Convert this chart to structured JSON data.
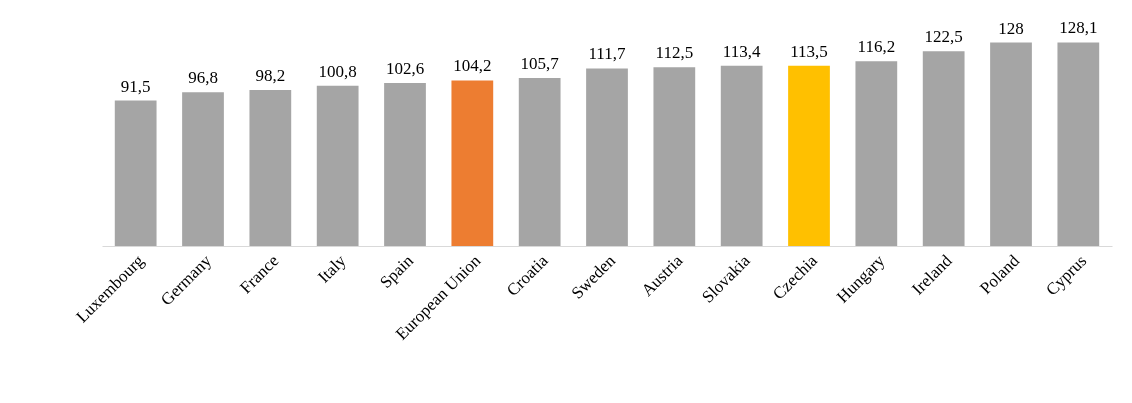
{
  "chart_data": {
    "type": "bar",
    "categories": [
      "Luxembourg",
      "Germany",
      "France",
      "Italy",
      "Spain",
      "European Union",
      "Croatia",
      "Sweden",
      "Austria",
      "Slovakia",
      "Czechia",
      "Hungary",
      "Ireland",
      "Poland",
      "Cyprus"
    ],
    "values": [
      91.5,
      96.8,
      98.2,
      100.8,
      102.6,
      104.2,
      105.7,
      111.7,
      112.5,
      113.4,
      113.5,
      116.2,
      122.5,
      128,
      128.1
    ],
    "colors": [
      "#a5a5a5",
      "#a5a5a5",
      "#a5a5a5",
      "#a5a5a5",
      "#a5a5a5",
      "#ed7d31",
      "#a5a5a5",
      "#a5a5a5",
      "#a5a5a5",
      "#a5a5a5",
      "#ffc000",
      "#a5a5a5",
      "#a5a5a5",
      "#a5a5a5",
      "#a5a5a5"
    ],
    "value_labels": [
      "91,5",
      "96,8",
      "98,2",
      "100,8",
      "102,6",
      "104,2",
      "105,7",
      "111,7",
      "112,5",
      "113,4",
      "113,5",
      "116,2",
      "122,5",
      "128",
      "128,1"
    ]
  }
}
